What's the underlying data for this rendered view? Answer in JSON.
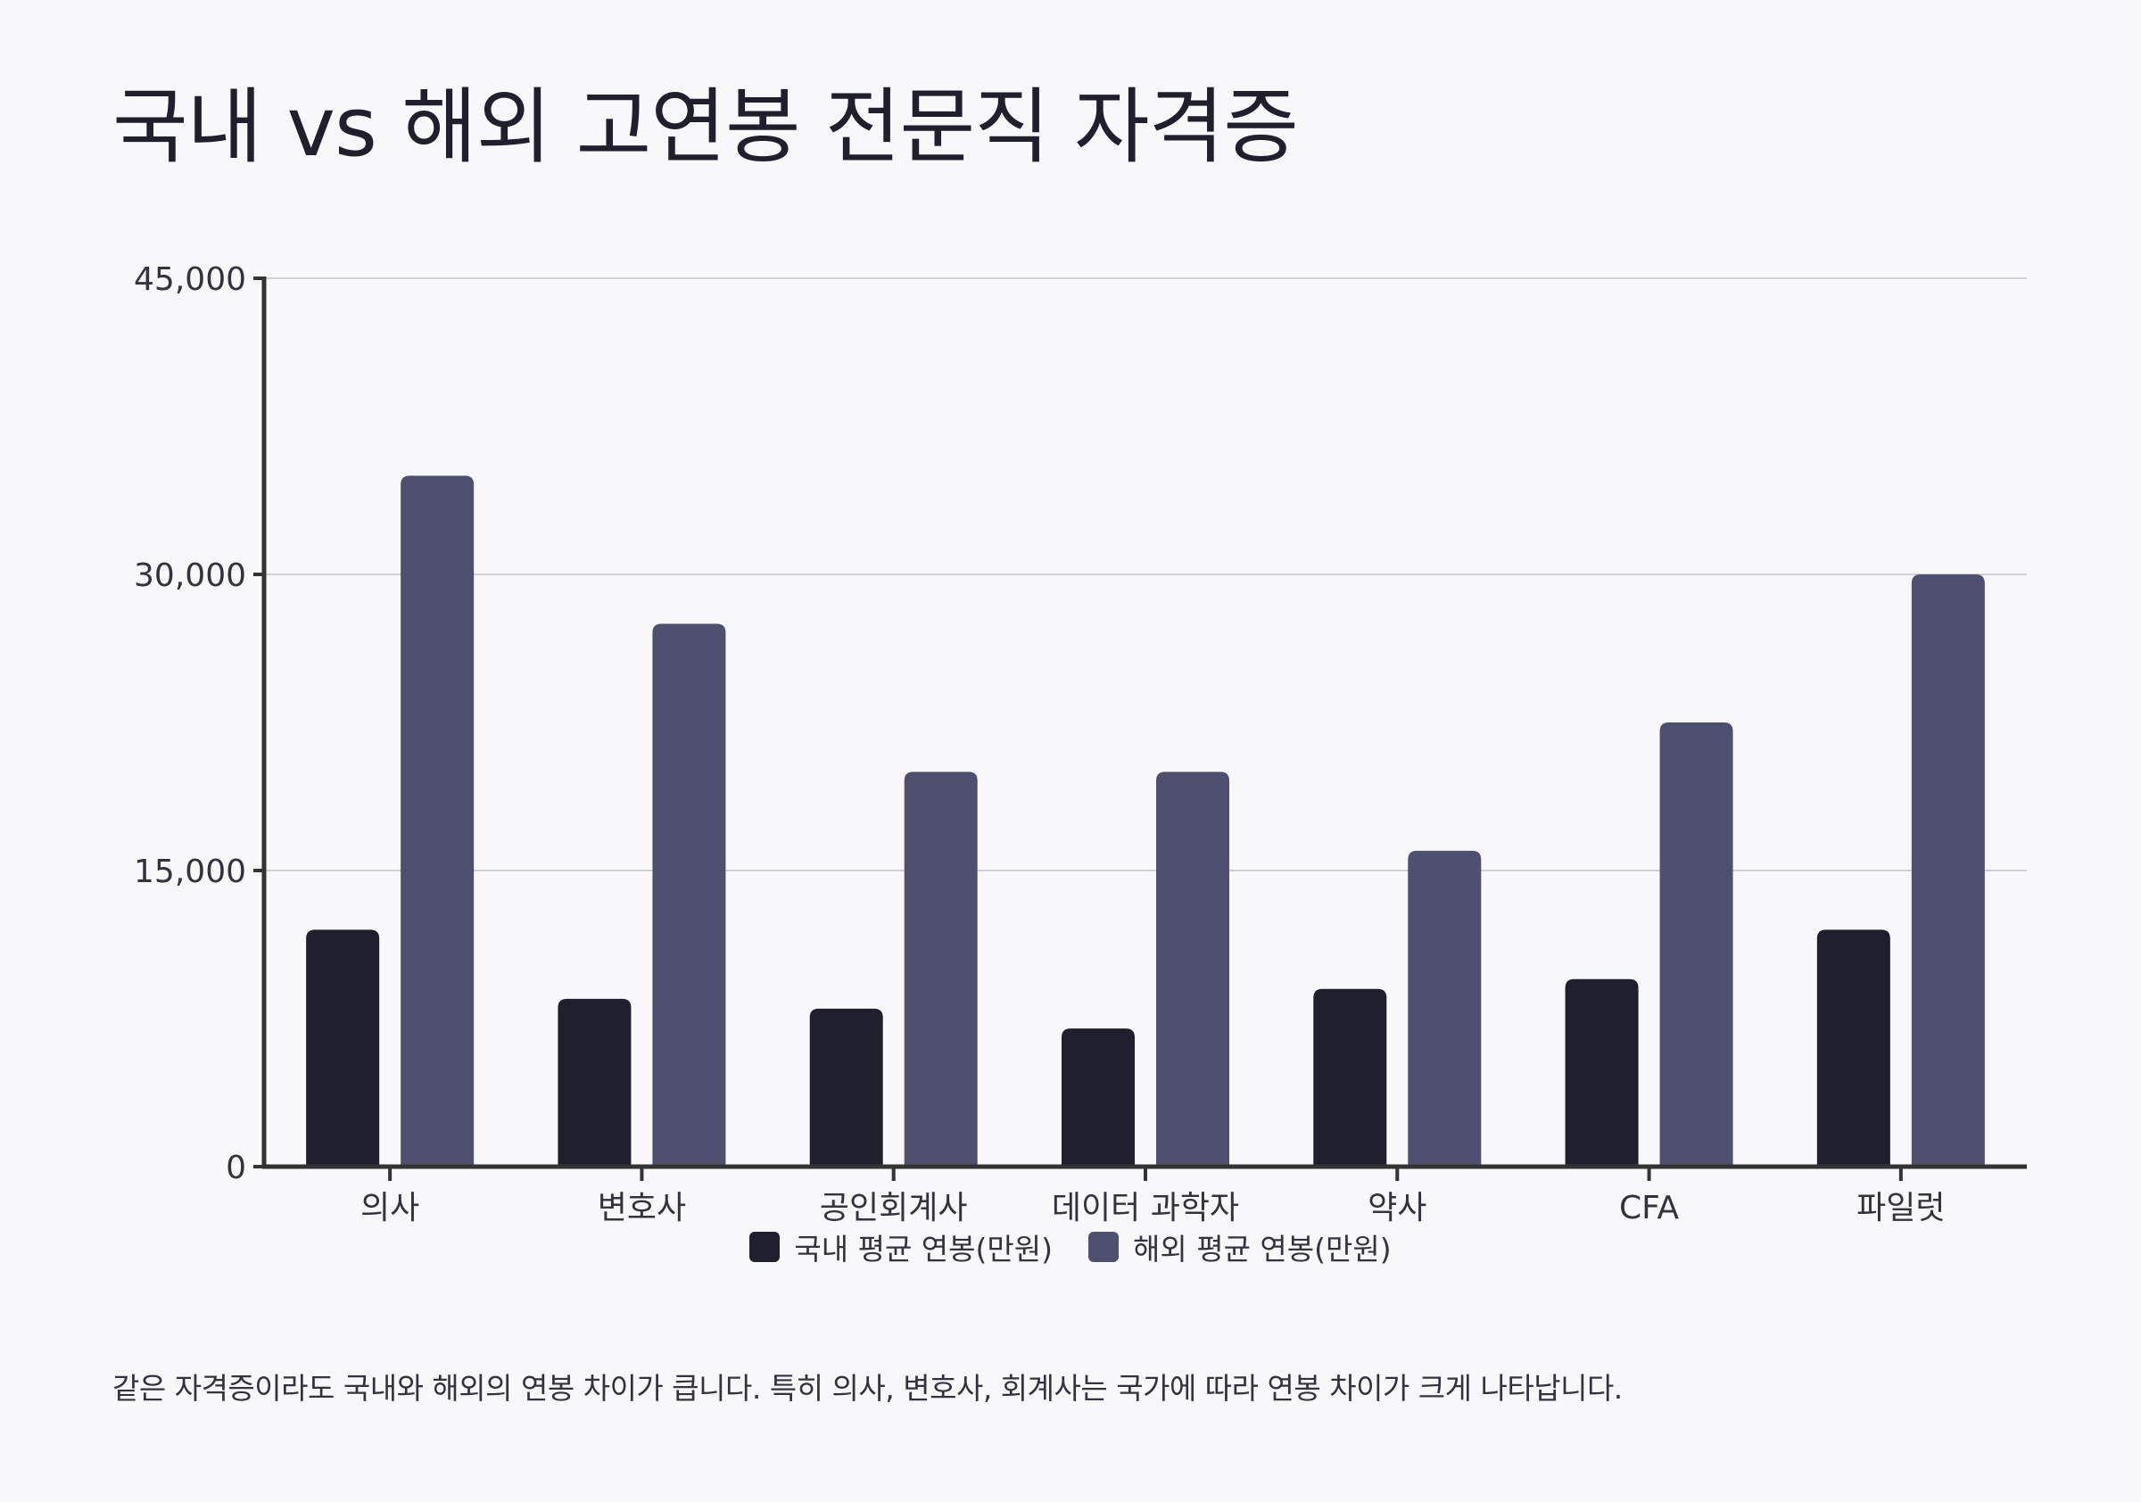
{
  "colors": {
    "background": "#f8f8fb",
    "domestic": "#1f1f2e",
    "overseas": "#4f4f70",
    "axis": "#333333",
    "grid": "#cfcfd6"
  },
  "chart_data": {
    "type": "bar",
    "title": "국내 vs 해외 고연봉 전문직 자격증",
    "categories": [
      "의사",
      "변호사",
      "공인회계사",
      "데이터 과학자",
      "약사",
      "CFA",
      "파일럿"
    ],
    "series": [
      {
        "name": "국내 평균 연봉(만원)",
        "values": [
          12000,
          8500,
          8000,
          7000,
          9000,
          9500,
          12000
        ]
      },
      {
        "name": "해외 평균 연봉(만원)",
        "values": [
          35000,
          27500,
          20000,
          20000,
          16000,
          22500,
          30000
        ]
      }
    ],
    "ylim": [
      0,
      45000
    ],
    "yticks": [
      0,
      15000,
      30000,
      45000
    ],
    "ytick_labels": [
      "0",
      "15,000",
      "30,000",
      "45,000"
    ],
    "xlabel": "",
    "ylabel": "",
    "grid": true,
    "legend_position": "bottom"
  },
  "caption": "같은 자격증이라도 국내와 해외의 연봉 차이가 큽니다. 특히 의사, 변호사, 회계사는 국가에 따라 연봉 차이가 크게 나타납니다."
}
